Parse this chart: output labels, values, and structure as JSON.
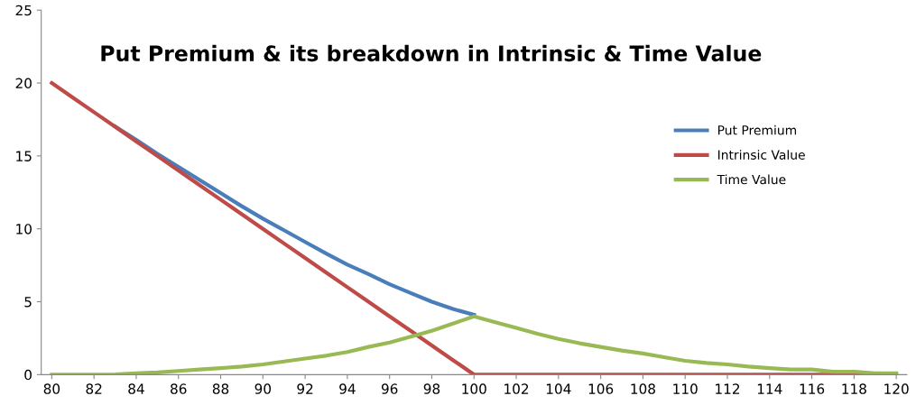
{
  "chart_data": {
    "type": "line",
    "title": "Put Premium & its breakdown in Intrinsic & Time Value",
    "x": [
      80,
      81,
      82,
      83,
      84,
      85,
      86,
      87,
      88,
      89,
      90,
      91,
      92,
      93,
      94,
      95,
      96,
      97,
      98,
      99,
      100,
      101,
      102,
      103,
      104,
      105,
      106,
      107,
      108,
      109,
      110,
      111,
      112,
      113,
      114,
      115,
      116,
      117,
      118,
      119,
      120
    ],
    "series": [
      {
        "name": "Put Premium",
        "color": "#4a7ebb",
        "values": [
          null,
          null,
          null,
          17.02,
          16.1,
          15.15,
          14.25,
          13.35,
          12.45,
          11.55,
          10.7,
          9.9,
          9.1,
          8.3,
          7.55,
          6.9,
          6.2,
          5.6,
          5.0,
          4.5,
          4.1,
          null,
          null,
          null,
          null,
          null,
          null,
          null,
          null,
          null,
          null,
          null,
          null,
          null,
          null,
          null,
          null,
          null,
          null,
          null,
          null
        ]
      },
      {
        "name": "Intrinsic Value",
        "color": "#be4b48",
        "values": [
          20,
          19,
          18,
          17,
          16,
          15,
          14,
          13,
          12,
          11,
          10,
          9,
          8,
          7,
          6,
          5,
          4,
          3,
          2,
          1,
          0,
          0,
          0,
          0,
          0,
          0,
          0,
          0,
          0,
          0,
          0,
          0,
          0,
          0,
          0,
          0,
          0,
          0,
          0,
          0,
          0
        ]
      },
      {
        "name": "Time Value",
        "color": "#98b954",
        "values": [
          0,
          0,
          0,
          0.02,
          0.1,
          0.15,
          0.25,
          0.35,
          0.45,
          0.55,
          0.7,
          0.9,
          1.1,
          1.3,
          1.55,
          1.9,
          2.2,
          2.6,
          3.0,
          3.5,
          4.0,
          3.6,
          3.2,
          2.8,
          2.45,
          2.15,
          1.9,
          1.65,
          1.45,
          1.2,
          0.95,
          0.8,
          0.7,
          0.55,
          0.45,
          0.35,
          0.35,
          0.2,
          0.2,
          0.1,
          0.1
        ]
      }
    ],
    "xlim": [
      79.5,
      120.5
    ],
    "xticks": [
      80,
      82,
      84,
      86,
      88,
      90,
      92,
      94,
      96,
      98,
      100,
      102,
      104,
      106,
      108,
      110,
      112,
      114,
      116,
      118,
      120
    ],
    "ylim": [
      0,
      25
    ],
    "yticks": [
      0,
      5,
      10,
      15,
      20,
      25
    ],
    "grid": false,
    "legend": "right",
    "marker": "none",
    "line_style": "solid"
  }
}
